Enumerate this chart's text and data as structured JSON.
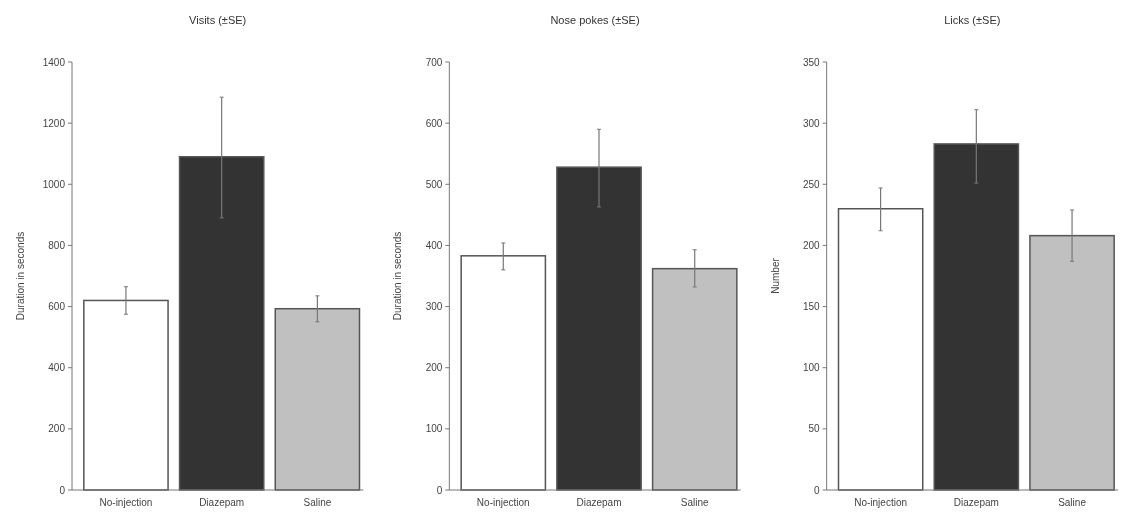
{
  "chart_data": [
    {
      "type": "bar",
      "title": "Visits (±SE)",
      "ylabel": "Duration in seconds",
      "categories": [
        "No-injection",
        "Diazepam",
        "Saline"
      ],
      "values": [
        620,
        1090,
        593
      ],
      "colors": [
        "#ffffff",
        "#333333",
        "#c0c0c0"
      ],
      "errors": [
        [
          575,
          665
        ],
        [
          890,
          1285
        ],
        [
          550,
          635
        ]
      ],
      "ylim": [
        0,
        1400
      ],
      "yticks": [
        0,
        200,
        400,
        600,
        800,
        1000,
        1200,
        1400
      ],
      "grid": false
    },
    {
      "type": "bar",
      "title": "Nose pokes (±SE)",
      "ylabel": "Duration in seconds",
      "categories": [
        "No-injection",
        "Diazepam",
        "Saline"
      ],
      "values": [
        383,
        528,
        362
      ],
      "colors": [
        "#ffffff",
        "#333333",
        "#c0c0c0"
      ],
      "errors": [
        [
          360,
          404
        ],
        [
          463,
          590
        ],
        [
          332,
          393
        ]
      ],
      "ylim": [
        0,
        700
      ],
      "yticks": [
        0,
        100,
        200,
        300,
        400,
        500,
        600,
        700
      ],
      "grid": false
    },
    {
      "type": "bar",
      "title": "Licks (±SE)",
      "ylabel": "Number",
      "categories": [
        "No-injection",
        "Diazepam",
        "Saline"
      ],
      "values": [
        230,
        283,
        208
      ],
      "colors": [
        "#ffffff",
        "#333333",
        "#c0c0c0"
      ],
      "errors": [
        [
          212,
          247
        ],
        [
          251,
          311
        ],
        [
          187,
          229
        ]
      ],
      "ylim": [
        0,
        350
      ],
      "yticks": [
        0,
        50,
        100,
        150,
        200,
        250,
        300,
        350
      ],
      "grid": false
    }
  ]
}
